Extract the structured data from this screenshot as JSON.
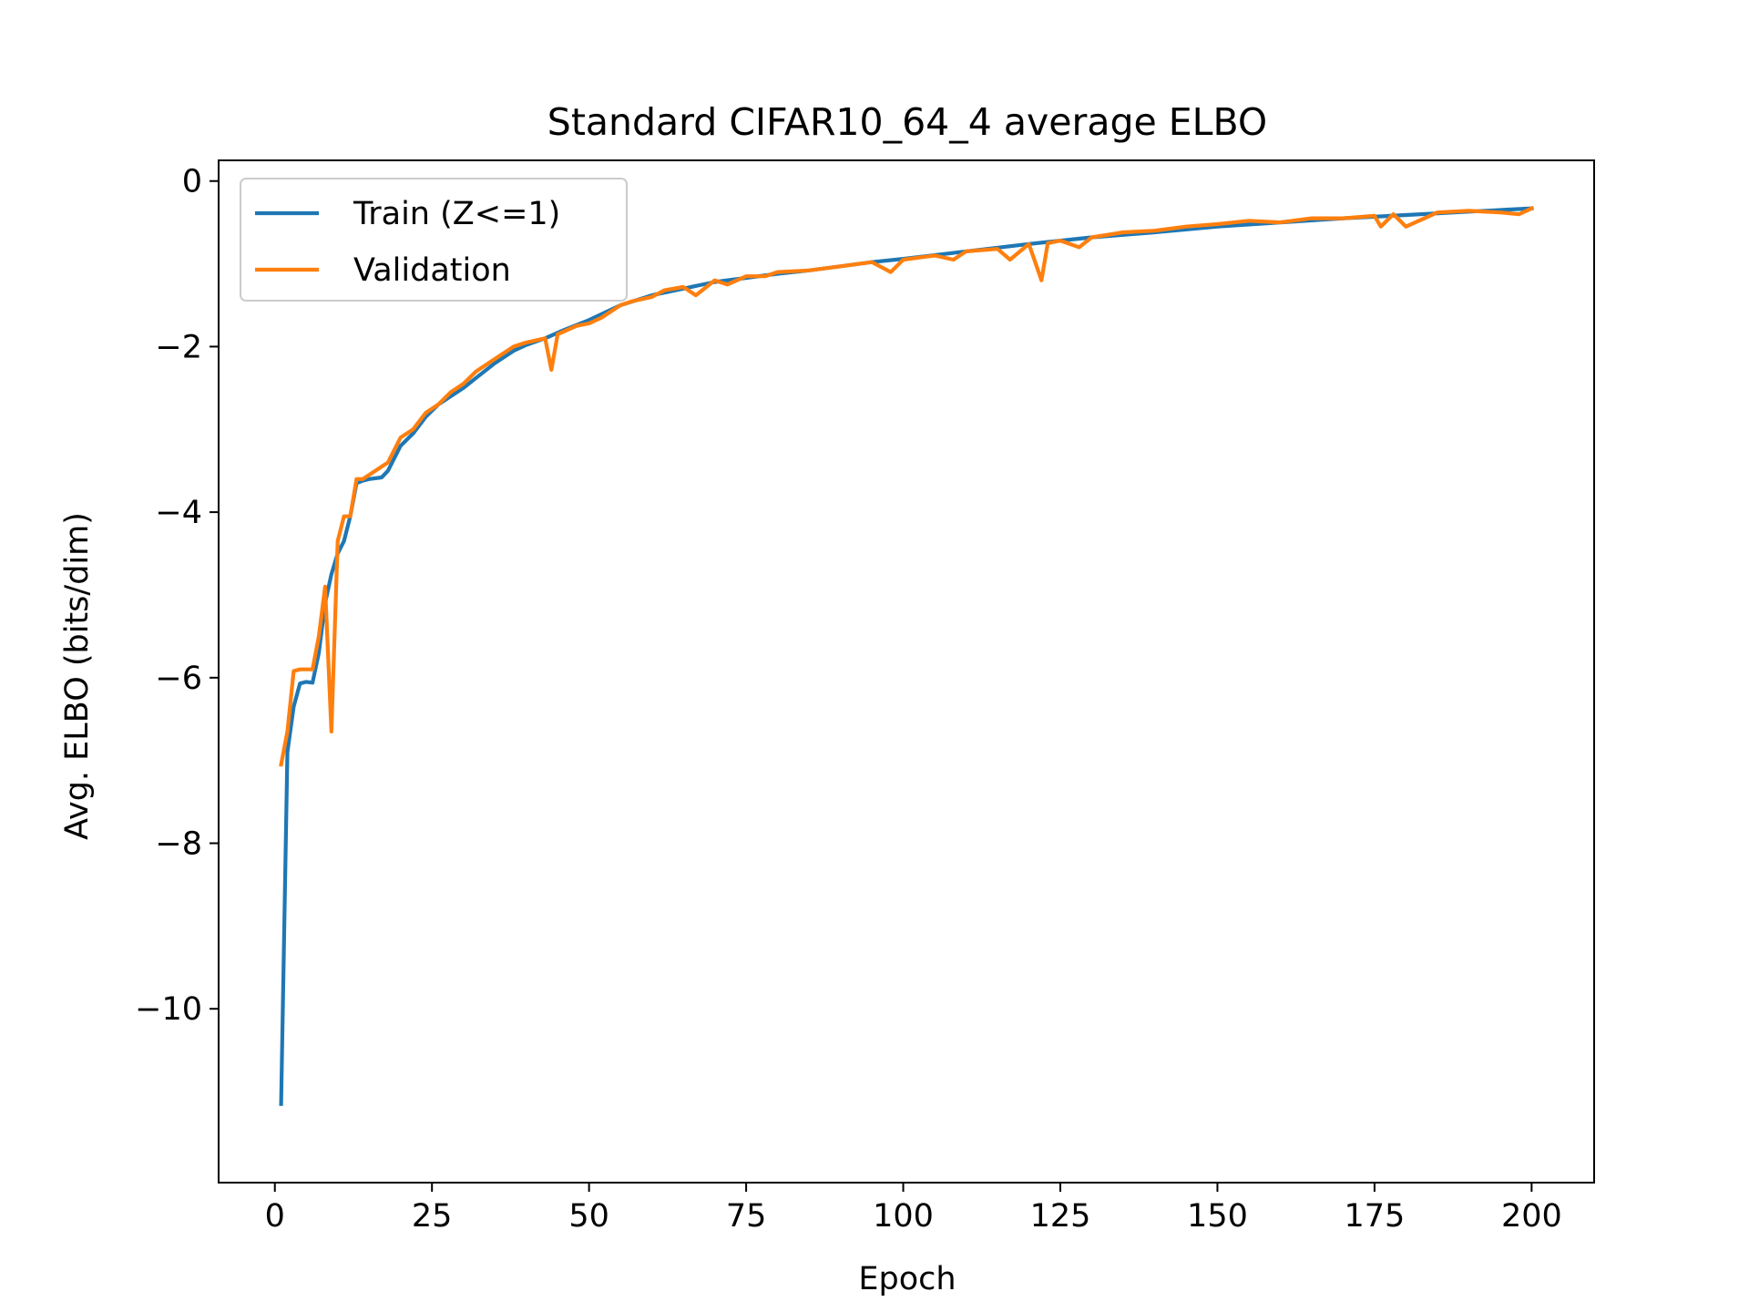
{
  "chart_data": {
    "type": "line",
    "title": "Standard CIFAR10_64_4 average ELBO",
    "xlabel": "Epoch",
    "ylabel": "Avg. ELBO (bits/dim)",
    "xlim": [
      -8.95,
      209.95
    ],
    "ylim": [
      -12.1,
      0.25
    ],
    "xticks": [
      0,
      25,
      50,
      75,
      100,
      125,
      150,
      175,
      200
    ],
    "yticks": [
      0,
      -2,
      -4,
      -6,
      -8,
      -10
    ],
    "xtick_labels": [
      "0",
      "25",
      "50",
      "75",
      "100",
      "125",
      "150",
      "175",
      "200"
    ],
    "ytick_labels": [
      "0",
      "−2",
      "−4",
      "−6",
      "−8",
      "−10"
    ],
    "grid": false,
    "legend_position": "top-left",
    "series": [
      {
        "name": "Train (Z<=1)",
        "color": "#1f77b4",
        "x": [
          1,
          2,
          3,
          4,
          5,
          6,
          7,
          8,
          9,
          10,
          11,
          12,
          13,
          14,
          15,
          17,
          18,
          20,
          22,
          24,
          26,
          28,
          30,
          32,
          35,
          38,
          40,
          43,
          46,
          50,
          55,
          60,
          65,
          70,
          75,
          80,
          85,
          90,
          95,
          100,
          110,
          120,
          130,
          140,
          150,
          160,
          170,
          180,
          190,
          200
        ],
        "y": [
          -11.15,
          -6.9,
          -6.35,
          -6.07,
          -6.05,
          -6.06,
          -5.7,
          -5.1,
          -4.75,
          -4.5,
          -4.35,
          -4.05,
          -3.65,
          -3.62,
          -3.6,
          -3.58,
          -3.5,
          -3.2,
          -3.05,
          -2.85,
          -2.7,
          -2.6,
          -2.5,
          -2.38,
          -2.2,
          -2.05,
          -1.98,
          -1.9,
          -1.8,
          -1.68,
          -1.5,
          -1.38,
          -1.3,
          -1.22,
          -1.17,
          -1.12,
          -1.08,
          -1.03,
          -0.98,
          -0.94,
          -0.85,
          -0.76,
          -0.68,
          -0.62,
          -0.55,
          -0.5,
          -0.45,
          -0.41,
          -0.37,
          -0.33
        ]
      },
      {
        "name": "Validation",
        "color": "#ff7f0e",
        "x": [
          1,
          2,
          3,
          4,
          5,
          6,
          7,
          8,
          9,
          10,
          11,
          12,
          13,
          14,
          15,
          17,
          18,
          20,
          22,
          24,
          26,
          28,
          30,
          32,
          35,
          38,
          40,
          43,
          44,
          45,
          48,
          50,
          52,
          55,
          57,
          60,
          62,
          65,
          67,
          70,
          72,
          75,
          78,
          80,
          85,
          90,
          95,
          98,
          100,
          105,
          108,
          110,
          115,
          117,
          120,
          122,
          123,
          125,
          128,
          130,
          135,
          140,
          145,
          150,
          155,
          160,
          165,
          170,
          175,
          176,
          178,
          180,
          185,
          190,
          195,
          198,
          200
        ],
        "y": [
          -7.05,
          -6.65,
          -5.92,
          -5.9,
          -5.9,
          -5.9,
          -5.5,
          -4.9,
          -6.65,
          -4.35,
          -4.05,
          -4.05,
          -3.6,
          -3.6,
          -3.55,
          -3.45,
          -3.4,
          -3.1,
          -3.0,
          -2.8,
          -2.7,
          -2.55,
          -2.45,
          -2.3,
          -2.15,
          -2.0,
          -1.95,
          -1.9,
          -2.28,
          -1.85,
          -1.75,
          -1.72,
          -1.65,
          -1.5,
          -1.45,
          -1.4,
          -1.32,
          -1.28,
          -1.38,
          -1.2,
          -1.25,
          -1.15,
          -1.15,
          -1.1,
          -1.08,
          -1.03,
          -0.98,
          -1.1,
          -0.95,
          -0.9,
          -0.95,
          -0.85,
          -0.82,
          -0.95,
          -0.76,
          -1.2,
          -0.75,
          -0.72,
          -0.8,
          -0.68,
          -0.62,
          -0.6,
          -0.55,
          -0.52,
          -0.48,
          -0.5,
          -0.45,
          -0.45,
          -0.42,
          -0.55,
          -0.4,
          -0.55,
          -0.38,
          -0.36,
          -0.38,
          -0.4,
          -0.33
        ]
      }
    ]
  }
}
